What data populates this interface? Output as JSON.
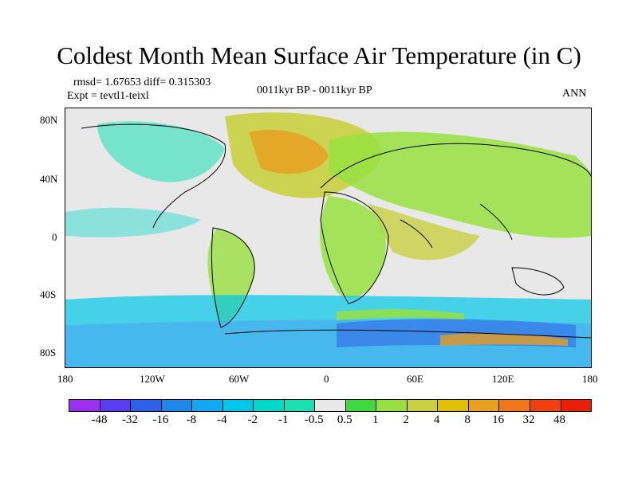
{
  "title": "Coldest Month Mean Surface Air Temperature (in C)",
  "stats": "rmsd= 1.67653 diff= 0.315303",
  "experiment": "Expt = tevtl1-teixl",
  "comparison": "0011kyr BP - 0011kyr BP",
  "season": "ANN",
  "lat_ticks": [
    "80N",
    "40N",
    "0",
    "40S",
    "80S"
  ],
  "lon_ticks": [
    "180",
    "120W",
    "60W",
    "0",
    "60E",
    "120E",
    "180"
  ],
  "colorbar": {
    "labels": [
      "-48",
      "-32",
      "-16",
      "-8",
      "-4",
      "-2",
      "-1",
      "-0.5",
      "0.5",
      "1",
      "2",
      "4",
      "8",
      "16",
      "32",
      "48"
    ],
    "colors": [
      "#9b30f0",
      "#5a3df0",
      "#3060e8",
      "#1e88e8",
      "#10a8f0",
      "#00c8e8",
      "#00d8c8",
      "#18e0b0",
      "#e8e8e8",
      "#40d840",
      "#98e040",
      "#c8d040",
      "#e0c000",
      "#e8a020",
      "#f07818",
      "#f04010",
      "#e82008"
    ]
  },
  "legend_colors": {
    "land_outline": "#000000",
    "background": "#e8e8e8"
  }
}
